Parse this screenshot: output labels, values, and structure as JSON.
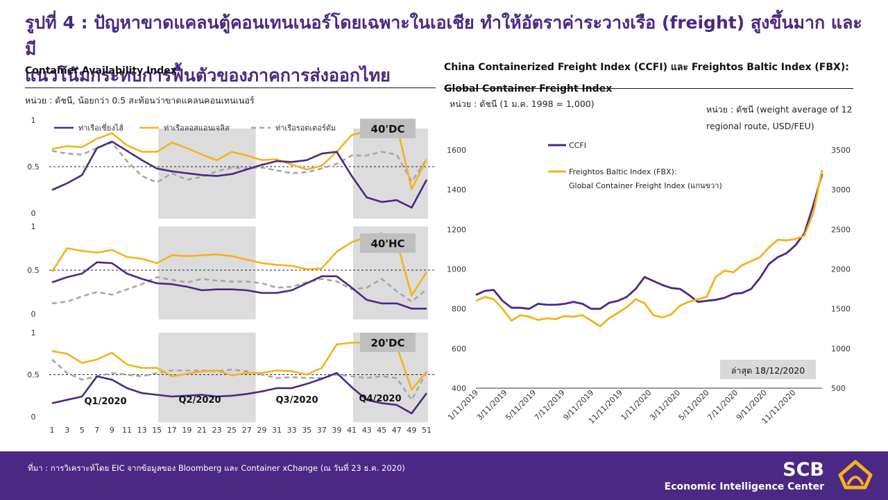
{
  "slide": {
    "title_line1": "รูปที่ 4 : ปัญหาขาดแคลนตู้คอนเทนเนอร์โดยเฉพาะในเอเชีย  ทำให้อัตราค่าระวางเรือ  (freight) สูงขึ้นมาก  และมี",
    "title_line2": "แนวโน้มกระทบการฟื้นตัวของภาคการส่งออกไทย"
  },
  "left": {
    "subtitle": "Container Availability Index",
    "unit": "หน่วย : ดัชนี, น้อยกว่า 0.5 สะท้อนว่าขาดแคลนคอนเทนเนอร์",
    "quarters": [
      "Q1/2020",
      "Q2/2020",
      "Q3/2020",
      "Q4/2020"
    ]
  },
  "right": {
    "subtitle_line1": "China Containerized Freight Index (CCFI) และ Freightos Baltic Index (FBX):",
    "subtitle_line2": "Global Container Freight Index",
    "unit_left": "หน่วย : ดัชนี (1 ม.ค. 1998 = 1,000)",
    "unit_right_line1": "หน่วย : ดัชนี  (weight average of 12",
    "unit_right_line2": "regional route, USD/FEU)",
    "latest": "ล่าสุด  18/12/2020"
  },
  "footer": {
    "source": "ที่มา : การวิเคราะห์โดย  EIC จากข้อมูลของ  Bloomberg และ  Container xChange (ณ  วันที่ 23 ธ.ค. 2020)",
    "brand_name": "SCB",
    "brand_sub": "Economic Intelligence Center"
  },
  "colors": {
    "purple": "#4a2883",
    "gold": "#f5b21b",
    "gray": "#a6a6a6",
    "shade": "#dcdcdc"
  },
  "chart_data": [
    {
      "type": "line",
      "title": "40'DC",
      "x": [
        1,
        3,
        5,
        7,
        9,
        11,
        13,
        15,
        17,
        19,
        21,
        23,
        25,
        27,
        29,
        31,
        33,
        35,
        37,
        39,
        41,
        43,
        45,
        47,
        49,
        51
      ],
      "xlim": [
        1,
        51
      ],
      "ylim": [
        0,
        1
      ],
      "yticks": [
        0,
        0.5,
        1
      ],
      "threshold": 0.5,
      "shaded_weeks": [
        [
          15,
          28
        ],
        [
          41,
          51
        ]
      ],
      "series": [
        {
          "name": "ท่าเรือเซี่ยงไฮ้",
          "values": [
            0.25,
            0.32,
            0.41,
            0.7,
            0.77,
            0.67,
            0.57,
            0.48,
            0.45,
            0.43,
            0.41,
            0.4,
            0.42,
            0.47,
            0.52,
            0.56,
            0.55,
            0.57,
            0.64,
            0.66,
            0.4,
            0.17,
            0.12,
            0.14,
            0.06,
            0.36
          ]
        },
        {
          "name": "ท่าเรือลอสแอนเจลิส",
          "values": [
            0.69,
            0.72,
            0.71,
            0.8,
            0.86,
            0.73,
            0.66,
            0.66,
            0.76,
            0.7,
            0.63,
            0.57,
            0.66,
            0.62,
            0.57,
            0.58,
            0.52,
            0.47,
            0.51,
            0.66,
            0.84,
            0.88,
            0.9,
            0.95,
            0.26,
            0.58
          ]
        },
        {
          "name": "ท่าเรือรอตเตอร์ดัม",
          "values": [
            0.67,
            0.64,
            0.63,
            0.7,
            0.76,
            0.56,
            0.4,
            0.33,
            0.43,
            0.36,
            0.39,
            0.45,
            0.49,
            0.48,
            0.49,
            0.46,
            0.43,
            0.44,
            0.48,
            0.53,
            0.62,
            0.62,
            0.66,
            0.63,
            0.34,
            0.58
          ]
        }
      ]
    },
    {
      "type": "line",
      "title": "40'HC",
      "x": [
        1,
        3,
        5,
        7,
        9,
        11,
        13,
        15,
        17,
        19,
        21,
        23,
        25,
        27,
        29,
        31,
        33,
        35,
        37,
        39,
        41,
        43,
        45,
        47,
        49,
        51
      ],
      "xlim": [
        1,
        51
      ],
      "ylim": [
        0,
        1
      ],
      "yticks": [
        0,
        0.5,
        1
      ],
      "threshold": 0.5,
      "shaded_weeks": [
        [
          15,
          28
        ],
        [
          41,
          51
        ]
      ],
      "series": [
        {
          "name": "ท่าเรือเซี่ยงไฮ้",
          "values": [
            0.36,
            0.42,
            0.46,
            0.59,
            0.58,
            0.46,
            0.4,
            0.35,
            0.34,
            0.31,
            0.27,
            0.28,
            0.28,
            0.27,
            0.24,
            0.24,
            0.27,
            0.35,
            0.43,
            0.43,
            0.3,
            0.16,
            0.12,
            0.12,
            0.06,
            0.06
          ]
        },
        {
          "name": "ท่าเรือลอสแอนเจลิส",
          "values": [
            0.48,
            0.75,
            0.72,
            0.7,
            0.73,
            0.65,
            0.63,
            0.58,
            0.67,
            0.66,
            0.67,
            0.68,
            0.66,
            0.62,
            0.58,
            0.56,
            0.55,
            0.51,
            0.52,
            0.71,
            0.82,
            0.88,
            0.92,
            0.83,
            0.21,
            0.48
          ]
        },
        {
          "name": "ท่าเรือรอตเตอร์ดัม",
          "values": [
            0.12,
            0.14,
            0.2,
            0.25,
            0.22,
            0.28,
            0.34,
            0.42,
            0.39,
            0.36,
            0.4,
            0.38,
            0.37,
            0.37,
            0.35,
            0.3,
            0.31,
            0.36,
            0.4,
            0.37,
            0.28,
            0.3,
            0.4,
            0.26,
            0.14,
            0.28
          ]
        }
      ]
    },
    {
      "type": "line",
      "title": "20'DC",
      "x": [
        1,
        3,
        5,
        7,
        9,
        11,
        13,
        15,
        17,
        19,
        21,
        23,
        25,
        27,
        29,
        31,
        33,
        35,
        37,
        39,
        41,
        43,
        45,
        47,
        49,
        51
      ],
      "xlim": [
        1,
        51
      ],
      "ylim": [
        0,
        1
      ],
      "yticks": [
        0,
        0.5,
        1
      ],
      "threshold": 0.5,
      "shaded_weeks": [
        [
          15,
          28
        ],
        [
          41,
          51
        ]
      ],
      "series": [
        {
          "name": "ท่าเรือเซี่ยงไฮ้",
          "values": [
            0.16,
            0.2,
            0.24,
            0.48,
            0.44,
            0.34,
            0.28,
            0.26,
            0.24,
            0.25,
            0.26,
            0.24,
            0.25,
            0.27,
            0.3,
            0.34,
            0.34,
            0.39,
            0.45,
            0.52,
            0.35,
            0.2,
            0.16,
            0.14,
            0.04,
            0.28
          ]
        },
        {
          "name": "ท่าเรือลอสแอนเจลิส",
          "values": [
            0.78,
            0.75,
            0.64,
            0.68,
            0.76,
            0.62,
            0.58,
            0.58,
            0.48,
            0.51,
            0.54,
            0.55,
            0.49,
            0.52,
            0.52,
            0.55,
            0.54,
            0.5,
            0.58,
            0.86,
            0.88,
            0.88,
            0.92,
            0.84,
            0.32,
            0.54
          ]
        },
        {
          "name": "ท่าเรือรอตเตอร์ดัม",
          "values": [
            0.68,
            0.52,
            0.44,
            0.48,
            0.52,
            0.5,
            0.48,
            0.52,
            0.55,
            0.55,
            0.55,
            0.54,
            0.56,
            0.54,
            0.5,
            0.46,
            0.47,
            0.46,
            0.46,
            0.5,
            0.48,
            0.46,
            0.48,
            0.46,
            0.2,
            0.53
          ]
        }
      ]
    },
    {
      "type": "line",
      "title": "",
      "x_ticks": [
        "1/11/2019",
        "3/11/2019",
        "5/11/2019",
        "7/11/2019",
        "9/11/2019",
        "11/11/2019",
        "1/11/2020",
        "3/11/2020",
        "5/11/2020",
        "7/11/2020",
        "9/11/2020",
        "11/11/2020"
      ],
      "y_left": {
        "lim": [
          400,
          1600
        ],
        "ticks": [
          400,
          600,
          800,
          1000,
          1200,
          1400,
          1600
        ]
      },
      "y_right": {
        "lim": [
          500,
          3500
        ],
        "ticks": [
          500,
          1000,
          1500,
          2000,
          2500,
          3000,
          3500
        ]
      },
      "legend_placement": "top-left",
      "series": [
        {
          "name": "CCFI",
          "axis": "left",
          "values": [
            870,
            890,
            895,
            840,
            805,
            805,
            800,
            825,
            820,
            820,
            825,
            835,
            825,
            800,
            800,
            830,
            840,
            860,
            900,
            960,
            940,
            920,
            905,
            900,
            870,
            835,
            840,
            845,
            855,
            875,
            880,
            900,
            955,
            1025,
            1060,
            1080,
            1120,
            1180,
            1320,
            1480
          ]
        },
        {
          "name": "Freightos Baltic Index (FBX): Global Container Freight Index (แกนขวา)",
          "axis": "right",
          "values": [
            1600,
            1650,
            1620,
            1500,
            1350,
            1420,
            1400,
            1360,
            1380,
            1370,
            1410,
            1400,
            1420,
            1350,
            1280,
            1380,
            1450,
            1520,
            1620,
            1570,
            1420,
            1390,
            1430,
            1540,
            1590,
            1620,
            1650,
            1900,
            1980,
            1960,
            2050,
            2100,
            2150,
            2270,
            2370,
            2360,
            2380,
            2420,
            2700,
            3250
          ]
        }
      ]
    }
  ]
}
